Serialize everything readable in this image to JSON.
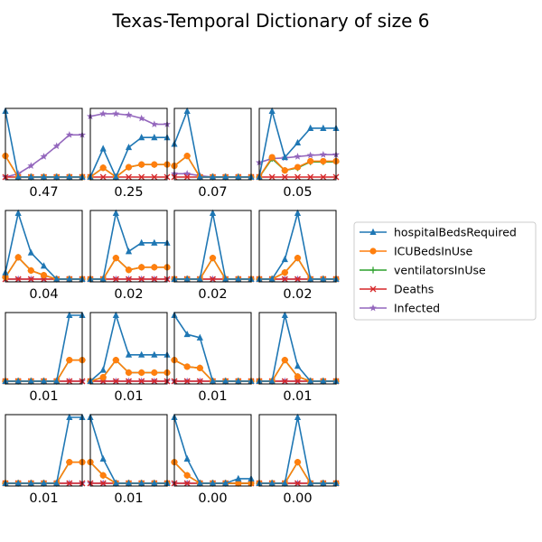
{
  "title": "Texas-Temporal Dictionary of size 6",
  "colors": {
    "hospitalBedsRequired": "#1f77b4",
    "ICUBedsInUse": "#ff7f0e",
    "ventilatorsInUse": "#2ca02c",
    "Deaths": "#d62728",
    "Infected": "#9467bd"
  },
  "legend": [
    {
      "key": "hospitalBedsRequired",
      "label": "hospitalBedsRequired",
      "marker": "triangle"
    },
    {
      "key": "ICUBedsInUse",
      "label": "ICUBedsInUse",
      "marker": "circle"
    },
    {
      "key": "ventilatorsInUse",
      "label": "ventilatorsInUse",
      "marker": "plus"
    },
    {
      "key": "Deaths",
      "label": "Deaths",
      "marker": "x"
    },
    {
      "key": "Infected",
      "label": "Infected",
      "marker": "star"
    }
  ],
  "chart_data": {
    "type": "line",
    "layout": "4x4 grid of small multiples, no axes ticks",
    "legend_placement": "right",
    "ylim": [
      0,
      1
    ],
    "x": [
      0,
      1,
      2,
      3,
      4,
      5,
      6
    ],
    "panels": [
      {
        "label": "0.47",
        "series": {
          "hospitalBedsRequired": [
            1.0,
            0.0,
            0.0,
            0.0,
            0.0,
            0.0,
            0.0
          ],
          "ICUBedsInUse": [
            0.32,
            0.0,
            0.0,
            0.0,
            0.0,
            0.0,
            0.0
          ],
          "ventilatorsInUse": [
            0.32,
            0.0,
            0.0,
            0.0,
            0.0,
            0.0,
            0.0
          ],
          "Deaths": [
            0,
            0,
            0,
            0,
            0,
            0,
            0
          ],
          "Infected": [
            0.0,
            0.05,
            0.17,
            0.31,
            0.47,
            0.64,
            0.64
          ]
        }
      },
      {
        "label": "0.25",
        "series": {
          "hospitalBedsRequired": [
            0.0,
            0.43,
            0.0,
            0.45,
            0.6,
            0.6,
            0.6
          ],
          "ICUBedsInUse": [
            0.0,
            0.14,
            0.0,
            0.15,
            0.19,
            0.19,
            0.19
          ],
          "ventilatorsInUse": [
            0.0,
            0.14,
            0.0,
            0.15,
            0.19,
            0.19,
            0.19
          ],
          "Deaths": [
            0,
            0,
            0,
            0,
            0,
            0,
            0
          ],
          "Infected": [
            0.92,
            0.96,
            0.96,
            0.94,
            0.89,
            0.8,
            0.8
          ]
        }
      },
      {
        "label": "0.07",
        "series": {
          "hospitalBedsRequired": [
            0.5,
            1.0,
            0.0,
            0.0,
            0.0,
            0.0,
            0.0
          ],
          "ICUBedsInUse": [
            0.17,
            0.32,
            0.0,
            0.0,
            0.0,
            0.0,
            0.0
          ],
          "ventilatorsInUse": [
            0.17,
            0.32,
            0.0,
            0.0,
            0.0,
            0.0,
            0.0
          ],
          "Deaths": [
            0,
            0,
            0,
            0,
            0,
            0,
            0
          ],
          "Infected": [
            0.05,
            0.05,
            0.02,
            0.0,
            0.0,
            0.0,
            0.0
          ]
        }
      },
      {
        "label": "0.05",
        "series": {
          "hospitalBedsRequired": [
            0.0,
            1.0,
            0.3,
            0.52,
            0.74,
            0.74,
            0.74
          ],
          "ICUBedsInUse": [
            0.0,
            0.3,
            0.1,
            0.15,
            0.24,
            0.24,
            0.24
          ],
          "ventilatorsInUse": [
            0.0,
            0.28,
            0.1,
            0.14,
            0.23,
            0.23,
            0.23
          ],
          "Deaths": [
            0,
            0,
            0,
            0,
            0,
            0,
            0
          ],
          "Infected": [
            0.22,
            0.28,
            0.29,
            0.31,
            0.33,
            0.34,
            0.34
          ]
        }
      },
      {
        "label": "0.04",
        "series": {
          "hospitalBedsRequired": [
            0.1,
            1.0,
            0.4,
            0.2,
            0.0,
            0.0,
            0.0
          ],
          "ICUBedsInUse": [
            0.03,
            0.33,
            0.13,
            0.06,
            0.0,
            0.0,
            0.0
          ],
          "ventilatorsInUse": [
            0.03,
            0.33,
            0.13,
            0.06,
            0.0,
            0.0,
            0.0
          ],
          "Deaths": [
            0,
            0,
            0,
            0,
            0,
            0,
            0
          ],
          "Infected": [
            0,
            0,
            0,
            0,
            0,
            0,
            0
          ]
        }
      },
      {
        "label": "0.02",
        "series": {
          "hospitalBedsRequired": [
            0.0,
            0.0,
            1.0,
            0.42,
            0.55,
            0.55,
            0.55
          ],
          "ICUBedsInUse": [
            0.0,
            0.0,
            0.32,
            0.14,
            0.18,
            0.18,
            0.18
          ],
          "ventilatorsInUse": [
            0.0,
            0.0,
            0.32,
            0.14,
            0.18,
            0.18,
            0.18
          ],
          "Deaths": [
            0,
            0,
            0,
            0,
            0,
            0,
            0
          ],
          "Infected": [
            0,
            0,
            0,
            0,
            0,
            0,
            0
          ]
        }
      },
      {
        "label": "0.02",
        "series": {
          "hospitalBedsRequired": [
            0.0,
            0.0,
            0.0,
            1.0,
            0.0,
            0.0,
            0.0
          ],
          "ICUBedsInUse": [
            0.0,
            0.0,
            0.0,
            0.32,
            0.0,
            0.0,
            0.0
          ],
          "ventilatorsInUse": [
            0.0,
            0.0,
            0.0,
            0.32,
            0.0,
            0.0,
            0.0
          ],
          "Deaths": [
            0,
            0,
            0,
            0,
            0,
            0,
            0
          ],
          "Infected": [
            0,
            0,
            0,
            0,
            0,
            0,
            0
          ]
        }
      },
      {
        "label": "0.02",
        "series": {
          "hospitalBedsRequired": [
            0.0,
            0.0,
            0.3,
            1.0,
            0.0,
            0.0,
            0.0
          ],
          "ICUBedsInUse": [
            0.0,
            0.0,
            0.1,
            0.32,
            0.0,
            0.0,
            0.0
          ],
          "ventilatorsInUse": [
            0.0,
            0.0,
            0.1,
            0.32,
            0.0,
            0.0,
            0.0
          ],
          "Deaths": [
            0,
            0,
            0,
            0,
            0,
            0,
            0
          ],
          "Infected": [
            0,
            0,
            0,
            0,
            0,
            0,
            0
          ]
        }
      },
      {
        "label": "0.01",
        "series": {
          "hospitalBedsRequired": [
            0.0,
            0.0,
            0.0,
            0.0,
            0.0,
            1.0,
            1.0
          ],
          "ICUBedsInUse": [
            0.0,
            0.0,
            0.0,
            0.0,
            0.0,
            0.32,
            0.32
          ],
          "ventilatorsInUse": [
            0.0,
            0.0,
            0.0,
            0.0,
            0.0,
            0.32,
            0.32
          ],
          "Deaths": [
            0,
            0,
            0,
            0,
            0,
            0,
            0
          ],
          "Infected": [
            0,
            0,
            0,
            0,
            0,
            0,
            0
          ]
        }
      },
      {
        "label": "0.01",
        "series": {
          "hospitalBedsRequired": [
            0.0,
            0.17,
            1.0,
            0.4,
            0.4,
            0.4,
            0.4
          ],
          "ICUBedsInUse": [
            0.0,
            0.06,
            0.32,
            0.13,
            0.13,
            0.13,
            0.13
          ],
          "ventilatorsInUse": [
            0.0,
            0.06,
            0.32,
            0.13,
            0.13,
            0.13,
            0.13
          ],
          "Deaths": [
            0,
            0,
            0,
            0,
            0,
            0,
            0
          ],
          "Infected": [
            0,
            0,
            0,
            0,
            0,
            0,
            0
          ]
        }
      },
      {
        "label": "0.01",
        "series": {
          "hospitalBedsRequired": [
            1.0,
            0.71,
            0.66,
            0.0,
            0.0,
            0.0,
            0.0
          ],
          "ICUBedsInUse": [
            0.32,
            0.22,
            0.2,
            0.0,
            0.0,
            0.0,
            0.0
          ],
          "ventilatorsInUse": [
            0.32,
            0.22,
            0.2,
            0.0,
            0.0,
            0.0,
            0.0
          ],
          "Deaths": [
            0,
            0,
            0,
            0,
            0,
            0,
            0
          ],
          "Infected": [
            0,
            0,
            0,
            0,
            0,
            0,
            0
          ]
        }
      },
      {
        "label": "0.01",
        "series": {
          "hospitalBedsRequired": [
            0.0,
            0.0,
            1.0,
            0.23,
            0.0,
            0.0,
            0.0
          ],
          "ICUBedsInUse": [
            0.0,
            0.0,
            0.32,
            0.07,
            0.0,
            0.0,
            0.0
          ],
          "ventilatorsInUse": [
            0.0,
            0.0,
            0.32,
            0.07,
            0.0,
            0.0,
            0.0
          ],
          "Deaths": [
            0,
            0,
            0,
            0,
            0,
            0,
            0
          ],
          "Infected": [
            0,
            0,
            0,
            0,
            0,
            0,
            0
          ]
        }
      },
      {
        "label": "0.01",
        "series": {
          "hospitalBedsRequired": [
            0.0,
            0.0,
            0.0,
            0.0,
            0.0,
            1.0,
            1.0
          ],
          "ICUBedsInUse": [
            0.0,
            0.0,
            0.0,
            0.0,
            0.0,
            0.32,
            0.32
          ],
          "ventilatorsInUse": [
            0.0,
            0.0,
            0.0,
            0.0,
            0.0,
            0.32,
            0.32
          ],
          "Deaths": [
            0,
            0,
            0,
            0,
            0,
            0,
            0
          ],
          "Infected": [
            0,
            0,
            0,
            0,
            0,
            0,
            0
          ]
        }
      },
      {
        "label": "0.01",
        "series": {
          "hospitalBedsRequired": [
            1.0,
            0.37,
            0.0,
            0.0,
            0.0,
            0.0,
            0.0
          ],
          "ICUBedsInUse": [
            0.32,
            0.12,
            0.0,
            0.0,
            0.0,
            0.0,
            0.0
          ],
          "ventilatorsInUse": [
            0.32,
            0.12,
            0.0,
            0.0,
            0.0,
            0.0,
            0.0
          ],
          "Deaths": [
            0,
            0,
            0,
            0,
            0,
            0,
            0
          ],
          "Infected": [
            0,
            0,
            0,
            0,
            0,
            0,
            0
          ]
        }
      },
      {
        "label": "0.00",
        "series": {
          "hospitalBedsRequired": [
            1.0,
            0.37,
            0.0,
            0.0,
            0.0,
            0.07,
            0.07
          ],
          "ICUBedsInUse": [
            0.32,
            0.12,
            0.0,
            0.0,
            0.0,
            0.0,
            0.0
          ],
          "ventilatorsInUse": [
            0.32,
            0.12,
            0.0,
            0.0,
            0.0,
            0.0,
            0.0
          ],
          "Deaths": [
            0,
            0,
            0,
            0,
            0,
            0,
            0
          ],
          "Infected": [
            0,
            0,
            0,
            0,
            0,
            0,
            0
          ]
        }
      },
      {
        "label": "0.00",
        "series": {
          "hospitalBedsRequired": [
            0.0,
            0.0,
            0.0,
            1.0,
            0.0,
            0.0,
            0.0
          ],
          "ICUBedsInUse": [
            0.0,
            0.0,
            0.0,
            0.32,
            0.0,
            0.0,
            0.0
          ],
          "ventilatorsInUse": [
            0.0,
            0.0,
            0.0,
            0.32,
            0.0,
            0.0,
            0.0
          ],
          "Deaths": [
            0,
            0,
            0,
            0,
            0,
            0,
            0
          ],
          "Infected": [
            0,
            0,
            0,
            0,
            0,
            0,
            0
          ]
        }
      }
    ]
  }
}
